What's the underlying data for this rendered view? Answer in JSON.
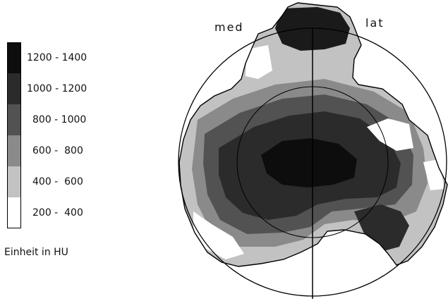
{
  "legend": {
    "items": [
      {
        "label": "1200 - 1400",
        "color": "#0d0d0d"
      },
      {
        "label": "1000 - 1200",
        "color": "#2b2b2b"
      },
      {
        "label": "800 - 1000",
        "color": "#525252"
      },
      {
        "label": "600 -  800",
        "color": "#8a8a8a"
      },
      {
        "label": "400 -  600",
        "color": "#c2c2c2"
      },
      {
        "label": "200 -  400",
        "color": "#ffffff"
      }
    ],
    "unit": "Einheit in HU"
  },
  "diagram": {
    "medial_label": "med",
    "lateral_label": "lat"
  }
}
